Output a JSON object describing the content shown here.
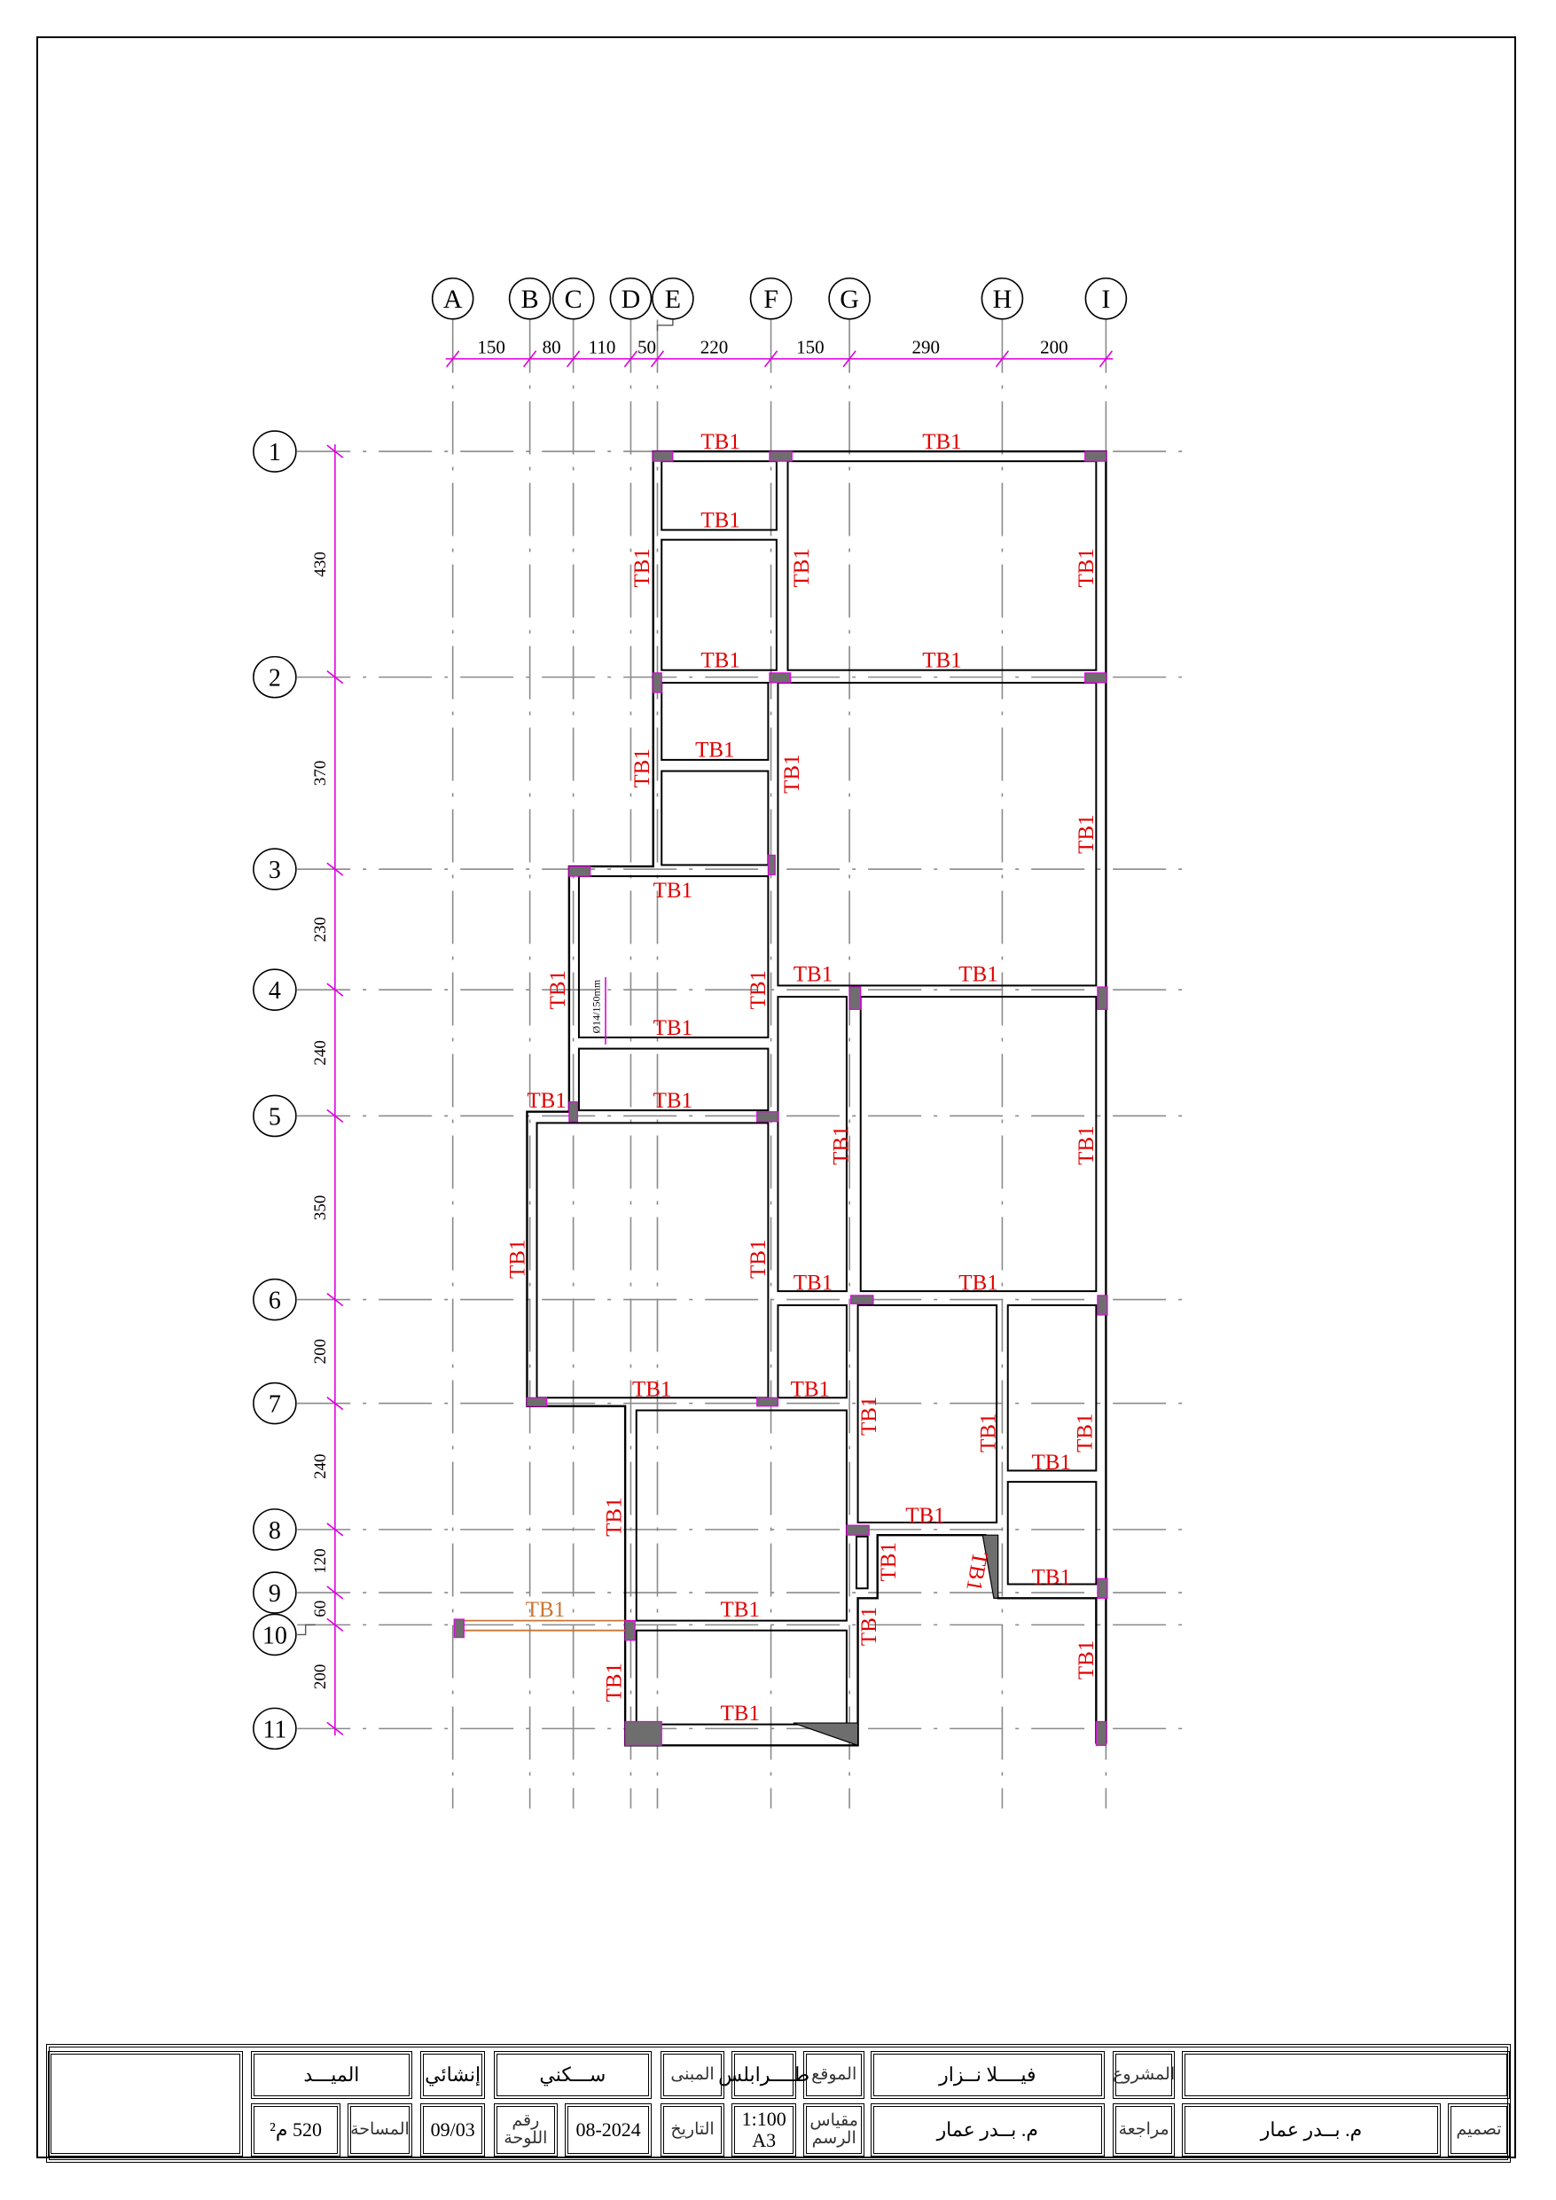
{
  "grid": {
    "columns": [
      "A",
      "B",
      "C",
      "D",
      "E",
      "F",
      "G",
      "H",
      "I"
    ],
    "column_spacings_cm": [
      "150",
      "80",
      "110",
      "50",
      "220",
      "150",
      "290",
      "200"
    ],
    "rows": [
      "1",
      "2",
      "3",
      "4",
      "5",
      "6",
      "7",
      "8",
      "9",
      "10",
      "11"
    ],
    "row_spacings_cm": [
      "430",
      "370",
      "230",
      "240",
      "350",
      "200",
      "240",
      "120",
      "60",
      "200"
    ]
  },
  "plan": {
    "beam_mark": "TB1",
    "rebar_note": "Ø14/150mm",
    "colors": {
      "beam_label": "#e00000",
      "dimension": "#e000e0",
      "grid": "#8a8a8a",
      "column_fill": "#6e6e6e",
      "cantilever_beam": "#c87533"
    }
  },
  "title_block": {
    "project_label": "المشروع",
    "project_value": "فيــــلا نــزار",
    "site_label": "الموقع",
    "site_value": "طــــرابلس",
    "building_label": "المبنى",
    "building_value": "ســـكني",
    "discipline_value": "إنشائي",
    "sheet_title": "الميـــد",
    "design_label": "تصميم",
    "design_value": "م. بــدر عمار",
    "review_label": "مراجعة",
    "review_value": "م. بــدر عمار",
    "scale_label": "مقياس الرسم",
    "scale_value": "1:100",
    "paper_value": "A3",
    "date_label": "التاريخ",
    "date_value": "08-2024",
    "sheet_no_label": "رقم اللوحة",
    "sheet_no_value": "09/03",
    "area_label": "المساحة",
    "area_value": "520 م²"
  }
}
